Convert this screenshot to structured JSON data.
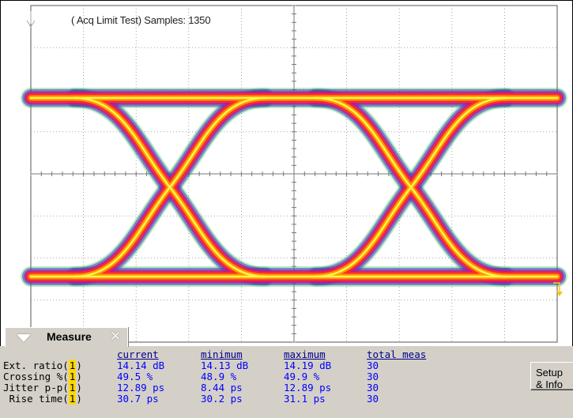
{
  "title": "( Acq Limit Test)  Samples: 1350",
  "measure": {
    "tab_label": "Measure",
    "headers": [
      "current",
      "minimum",
      "maximum",
      "total meas"
    ],
    "rows": [
      {
        "label": "Ext. ratio(",
        "ch": "1",
        "close": ")",
        "current": "14.14 dB",
        "minimum": "14.13 dB",
        "maximum": "14.19 dB",
        "total": "30"
      },
      {
        "label": "Crossing %(",
        "ch": "1",
        "close": ")",
        "current": "49.5 %",
        "minimum": "48.9 %",
        "maximum": "49.9 %",
        "total": "30"
      },
      {
        "label": "Jitter p-p(",
        "ch": "1",
        "close": ")",
        "current": "12.89 ps",
        "minimum": "8.44 ps",
        "maximum": "12.89 ps",
        "total": "30"
      },
      {
        "label": " Rise time(",
        "ch": "1",
        "close": ")",
        "current": "30.7 ps",
        "minimum": "30.2 ps",
        "maximum": "31.1 ps",
        "total": "30"
      }
    ],
    "setup_button": "Setup\n& Info"
  },
  "colors": {
    "grid": "#8c8c8c",
    "trace_hot": "#fff64a",
    "trace_warm": "#ff9a00",
    "trace_mid": "#ff2a2a",
    "trace_cool": "#c0168c",
    "trace_cold": "#3a3ad0",
    "trace_edge": "#33c44a",
    "panel_bg": "#d4d0c8",
    "value_blue": "#0000ff",
    "channel_marker": "#ffd800"
  }
}
